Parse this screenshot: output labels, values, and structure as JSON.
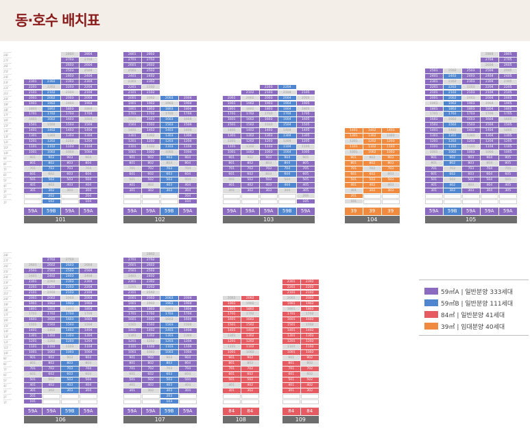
{
  "page": {
    "title": "동·호수 배치표"
  },
  "colors": {
    "59A": "#8a6bbf",
    "59B": "#4f86cf",
    "84": "#e65a62",
    "39": "#ef8a3f",
    "empty": "#dcdcdc"
  },
  "legend": [
    {
      "type": "59A",
      "label": "59㎡A  |  일반분양 333세대",
      "color": "#8a6bbf"
    },
    {
      "type": "59B",
      "label": "59㎡B  |  일반분양 111세대",
      "color": "#4f86cf"
    },
    {
      "type": "84",
      "label": "84㎡  |  일반분양 41세대",
      "color": "#e65a62"
    },
    {
      "type": "39",
      "label": "39㎡  |  임대분양 40세대",
      "color": "#ef8a3f"
    }
  ],
  "floor_labels_top": [
    "28F",
    "27F",
    "26F",
    "25F",
    "24F",
    "23F",
    "22F",
    "21F",
    "20F",
    "19F",
    "18F",
    "17F",
    "16F",
    "15F",
    "14F",
    "13F",
    "12F",
    "11F",
    "10F",
    "9F",
    "8F",
    "7F",
    "6F",
    "5F",
    "4F",
    "3F",
    "2F",
    "1F"
  ],
  "floor_labels_bottom": [
    "28F",
    "27F",
    "26F",
    "25F",
    "24F",
    "23F",
    "22F",
    "21F",
    "20F",
    "19F",
    "18F",
    "17F",
    "16F",
    "15F",
    "14F",
    "13F",
    "12F",
    "11F",
    "10F",
    "9F",
    "8F",
    "7F",
    "6F",
    "5F",
    "4F",
    "3F",
    "2F",
    "1F"
  ],
  "buildings": [
    {
      "name": "101",
      "columns": [
        {
          "type": "59A",
          "top": 23,
          "bottom": 3
        },
        {
          "type": "59B",
          "top": 23,
          "bottom": 1
        },
        {
          "type": "59A",
          "top": 28,
          "bottom": 3
        },
        {
          "type": "59A",
          "top": 28,
          "bottom": 1
        }
      ]
    },
    {
      "name": "102",
      "columns": [
        {
          "type": "59A",
          "top": 28,
          "bottom": 3
        },
        {
          "type": "59A",
          "top": 28,
          "bottom": 3
        },
        {
          "type": "59B",
          "top": 20,
          "bottom": 3
        },
        {
          "type": "59A",
          "top": 20,
          "bottom": 1
        }
      ]
    },
    {
      "name": "103",
      "columns": [
        {
          "type": "59A",
          "top": 20,
          "bottom": 3
        },
        {
          "type": "59A",
          "top": 21,
          "bottom": 3
        },
        {
          "type": "59A",
          "top": 22,
          "bottom": 3
        },
        {
          "type": "59B",
          "top": 22,
          "bottom": 3
        },
        {
          "type": "59A",
          "top": 21,
          "bottom": 1
        }
      ]
    },
    {
      "name": "104",
      "columns": [
        {
          "type": "39",
          "top": 14,
          "bottom": 1
        },
        {
          "type": "39",
          "top": 14,
          "bottom": 3
        },
        {
          "type": "39",
          "top": 14,
          "bottom": 3
        }
      ]
    },
    {
      "name": "105",
      "columns": [
        {
          "type": "59A",
          "top": 25,
          "bottom": 3
        },
        {
          "type": "59B",
          "top": 25,
          "bottom": 3
        },
        {
          "type": "59A",
          "top": 25,
          "bottom": 3
        },
        {
          "type": "59A",
          "top": 28,
          "bottom": 3
        },
        {
          "type": "59A",
          "top": 28,
          "bottom": 3
        }
      ]
    },
    {
      "name": "106",
      "columns": [
        {
          "type": "59A",
          "top": 26,
          "bottom": 1
        },
        {
          "type": "59A",
          "top": 27,
          "bottom": 3
        },
        {
          "type": "59B",
          "top": 27,
          "bottom": 3
        },
        {
          "type": "59A",
          "top": 26,
          "bottom": 3
        }
      ]
    },
    {
      "name": "107",
      "columns": [
        {
          "type": "59A",
          "top": 27,
          "bottom": 3
        },
        {
          "type": "59A",
          "top": 28,
          "bottom": 3
        },
        {
          "type": "59B",
          "top": 20,
          "bottom": 1
        },
        {
          "type": "59A",
          "top": 20,
          "bottom": 3
        }
      ]
    },
    {
      "name": "108",
      "columns": [
        {
          "type": "84",
          "top": 20,
          "bottom": 3
        },
        {
          "type": "84",
          "top": 20,
          "bottom": 3
        }
      ]
    },
    {
      "name": "109",
      "columns": [
        {
          "type": "84",
          "top": 23,
          "bottom": 3
        },
        {
          "type": "84",
          "top": 23,
          "bottom": 3
        }
      ]
    }
  ]
}
